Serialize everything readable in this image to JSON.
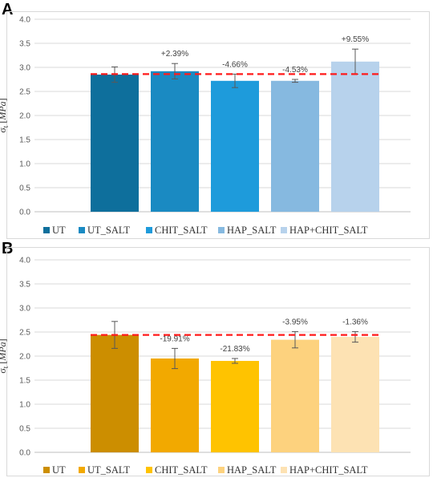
{
  "chart_data": [
    {
      "panel": "A",
      "type": "bar",
      "ylabel": "σt [MPa]",
      "ylim": [
        0,
        4
      ],
      "yticks": [
        "0.0",
        "0.5",
        "1.0",
        "1.5",
        "2.0",
        "2.5",
        "3.0",
        "3.5",
        "4.0"
      ],
      "categories": [
        "UT",
        "UT_SALT",
        "CHIT_SALT",
        "HAP_SALT",
        "HAP+CHIT_SALT"
      ],
      "values": [
        2.85,
        2.92,
        2.72,
        2.72,
        3.12
      ],
      "errors": [
        0.16,
        0.16,
        0.14,
        0.03,
        0.26
      ],
      "annotations": [
        "",
        "+2.39%",
        "-4.66%",
        "-4.53%",
        "+9.55%"
      ],
      "reference_line": 2.86,
      "colors": [
        "#0E6F9C",
        "#1A8AC2",
        "#1E9BDB",
        "#86B9E0",
        "#B7D2EC"
      ],
      "legend": [
        "UT",
        "UT_SALT",
        "CHIT_SALT",
        "HAP_SALT",
        "HAP+CHIT_SALT"
      ],
      "legend_position": "bottom",
      "grid": true
    },
    {
      "panel": "B",
      "type": "bar",
      "ylabel": "σt [MPa]",
      "ylim": [
        0,
        4
      ],
      "yticks": [
        "0.0",
        "0.5",
        "1.0",
        "1.5",
        "2.0",
        "2.5",
        "3.0",
        "3.5",
        "4.0"
      ],
      "categories": [
        "UT",
        "UT_SALT",
        "CHIT_SALT",
        "HAP_SALT",
        "HAP+CHIT_SALT"
      ],
      "values": [
        2.44,
        1.95,
        1.9,
        2.34,
        2.4
      ],
      "errors": [
        0.28,
        0.21,
        0.05,
        0.17,
        0.11
      ],
      "annotations": [
        "",
        "-19.91%",
        "-21.83%",
        "-3.95%",
        "-1.36%"
      ],
      "reference_line": 2.44,
      "colors": [
        "#CC8E00",
        "#F2A900",
        "#FFC300",
        "#FDD27E",
        "#FDE2B3"
      ],
      "legend": [
        "UT",
        "UT_SALT",
        "CHIT_SALT",
        "HAP_SALT",
        "HAP+CHIT_SALT"
      ],
      "legend_position": "bottom",
      "grid": true
    }
  ],
  "panels": {
    "a_letter": "A",
    "b_letter": "B"
  }
}
